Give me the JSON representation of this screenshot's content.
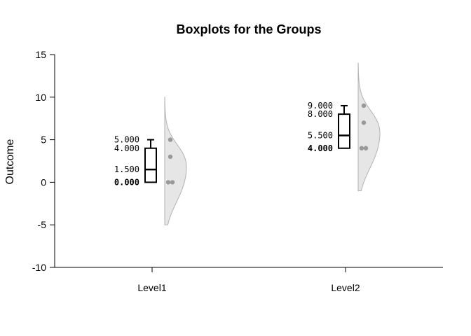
{
  "chart_data": {
    "type": "boxplot",
    "title": "Boxplots for the Groups",
    "xlabel": "",
    "ylabel": "Outcome",
    "ylim": [
      -10,
      15
    ],
    "yticks": [
      -10,
      -5,
      0,
      5,
      10,
      15
    ],
    "grid": false,
    "categories": [
      "Level1",
      "Level2"
    ],
    "groups": [
      {
        "name": "Level1",
        "min": 0,
        "q1": 0,
        "median": 1.5,
        "q3": 4,
        "max": 5,
        "points": [
          0,
          0,
          3,
          5
        ],
        "density_range": [
          -5,
          10
        ],
        "density_peak": 0.5,
        "labels": [
          "5.000",
          "4.000",
          "1.500",
          "0.000"
        ]
      },
      {
        "name": "Level2",
        "min": 4,
        "q1": 4,
        "median": 5.5,
        "q3": 8,
        "max": 9,
        "points": [
          4,
          4,
          7,
          9
        ],
        "density_range": [
          -1,
          14
        ],
        "density_peak": 4.5,
        "labels": [
          "9.000",
          "8.000",
          "5.500",
          "4.000"
        ]
      }
    ],
    "colors": {
      "box": "#000000",
      "density_fill": "#e6e6e6",
      "density_stroke": "#b3b3b3",
      "points": "#999999"
    }
  }
}
